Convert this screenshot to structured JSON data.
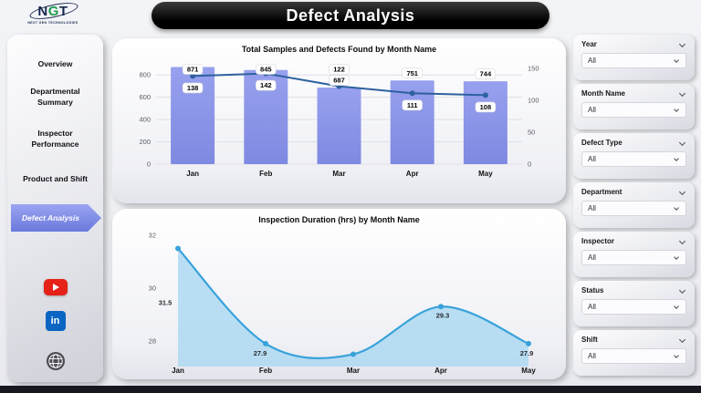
{
  "header": {
    "title": "Defect Analysis"
  },
  "logo": {
    "letters": [
      "N",
      "G",
      "T"
    ],
    "caption": "NEXT GEN TECHNOLOGIES"
  },
  "nav": {
    "items": [
      {
        "label": "Overview",
        "active": false
      },
      {
        "label": "Departmental Summary",
        "active": false
      },
      {
        "label": "Inspector Performance",
        "active": false
      },
      {
        "label": "Product and Shift",
        "active": false
      },
      {
        "label": "Defect Analysis",
        "active": true
      }
    ],
    "social": [
      {
        "name": "youtube"
      },
      {
        "name": "linkedin",
        "text": "in"
      },
      {
        "name": "website"
      }
    ]
  },
  "filters": [
    {
      "label": "Year",
      "value": "All"
    },
    {
      "label": "Month Name",
      "value": "All"
    },
    {
      "label": "Defect Type",
      "value": "All"
    },
    {
      "label": "Department",
      "value": "All"
    },
    {
      "label": "Inspector",
      "value": "All"
    },
    {
      "label": "Status",
      "value": "All"
    },
    {
      "label": "Shift",
      "value": "All"
    }
  ],
  "chart_data": [
    {
      "type": "bar",
      "subtype": "combo-bar-line",
      "title": "Total Samples and Defects Found by Month Name",
      "categories": [
        "Jan",
        "Feb",
        "Mar",
        "Apr",
        "May"
      ],
      "series": [
        {
          "name": "Total Samples",
          "kind": "bar",
          "axis": "left",
          "values": [
            871,
            845,
            687,
            751,
            744
          ]
        },
        {
          "name": "Defects Found",
          "kind": "line",
          "axis": "right",
          "values": [
            138,
            142,
            122,
            111,
            108
          ]
        }
      ],
      "left_axis": {
        "ticks": [
          0,
          200,
          400,
          600,
          800
        ],
        "max": 900
      },
      "right_axis": {
        "ticks": [
          0,
          50,
          100,
          150
        ],
        "max": 150
      },
      "grid": true,
      "legend": "none"
    },
    {
      "type": "area",
      "title": "Inspection Duration (hrs) by Month Name",
      "categories": [
        "Jan",
        "Feb",
        "Mar",
        "Apr",
        "May"
      ],
      "values": [
        31.5,
        27.9,
        27.5,
        29.3,
        27.9
      ],
      "labels": [
        "31.5",
        "27.9",
        "",
        "29.3",
        "27.9"
      ],
      "y_axis": {
        "ticks": [
          28,
          30,
          32
        ],
        "min": 27.0,
        "max": 32.0
      },
      "grid": false,
      "legend": "none"
    }
  ],
  "colors": {
    "bar": "#8692e8",
    "line": "#2e619e",
    "area_fill": "#aed9f2",
    "area_line": "#38a2da",
    "accent": "#7c89e4",
    "header_bg": "#000000",
    "youtube": "#e62117",
    "linkedin": "#0a66c2"
  }
}
